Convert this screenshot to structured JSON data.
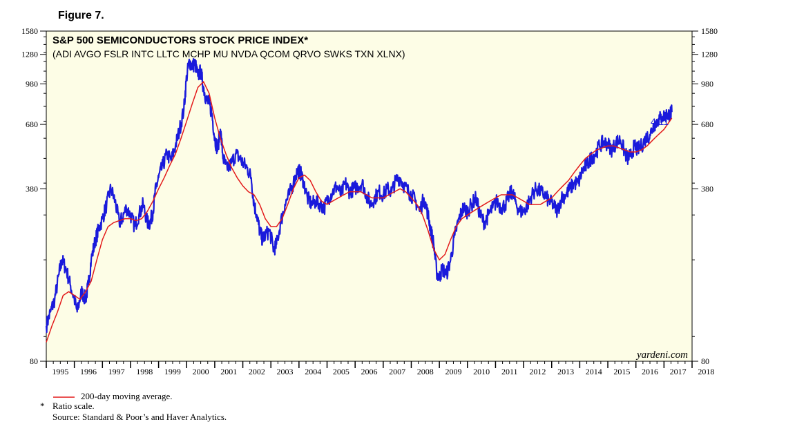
{
  "figure_label": "Figure 7.",
  "watermark": "yardeni.com",
  "footnotes": {
    "legend_label": "200-day moving average.",
    "ratio_marker": "*",
    "ratio_note": "Ratio scale.",
    "source": "Source: Standard & Poor’s and Haver Analytics."
  },
  "colors": {
    "price": "#1a1adb",
    "moving_average": "#e31b1b",
    "plot_bg": "#fdfde6"
  },
  "chart_data": {
    "type": "line",
    "title": "S&P 500 SEMICONDUCTORS STOCK PRICE INDEX*",
    "subtitle": "(ADI AVGO FSLR INTC LLTC MCHP MU NVDA QCOM QRVO SWKS TXN XLNX)",
    "y_scale": "log",
    "ylim": [
      80,
      1580
    ],
    "xlim": [
      1995.0,
      2018.0
    ],
    "y_ticks": [
      80,
      380,
      680,
      980,
      1280,
      1580
    ],
    "x_tick_labels": [
      "1995",
      "1996",
      "1997",
      "1998",
      "1999",
      "2000",
      "2001",
      "2002",
      "2003",
      "2004",
      "2005",
      "2006",
      "2007",
      "2008",
      "2009",
      "2010",
      "2011",
      "2012",
      "2013",
      "2014",
      "2015",
      "2016",
      "2017",
      "2018"
    ],
    "grid": false,
    "end_label": "4/11",
    "series": [
      {
        "name": "S&P 500 Semiconductors Stock Price Index",
        "x": [
          1995.0,
          1995.15,
          1995.3,
          1995.45,
          1995.55,
          1995.7,
          1995.85,
          1996.0,
          1996.1,
          1996.25,
          1996.4,
          1996.5,
          1996.6,
          1996.75,
          1996.85,
          1997.0,
          1997.15,
          1997.3,
          1997.45,
          1997.6,
          1997.7,
          1997.85,
          1998.0,
          1998.15,
          1998.3,
          1998.45,
          1998.6,
          1998.7,
          1998.8,
          1998.9,
          1999.0,
          1999.15,
          1999.3,
          1999.45,
          1999.6,
          1999.75,
          1999.9,
          2000.0,
          2000.1,
          2000.2,
          2000.3,
          2000.4,
          2000.5,
          2000.6,
          2000.7,
          2000.8,
          2000.9,
          2001.0,
          2001.1,
          2001.2,
          2001.3,
          2001.45,
          2001.6,
          2001.75,
          2001.9,
          2002.0,
          2002.15,
          2002.3,
          2002.4,
          2002.5,
          2002.6,
          2002.7,
          2002.8,
          2002.95,
          2003.1,
          2003.2,
          2003.35,
          2003.5,
          2003.65,
          2003.8,
          2003.95,
          2004.05,
          2004.15,
          2004.3,
          2004.45,
          2004.6,
          2004.75,
          2004.9,
          2005.05,
          2005.2,
          2005.35,
          2005.5,
          2005.65,
          2005.8,
          2005.95,
          2006.1,
          2006.25,
          2006.4,
          2006.55,
          2006.7,
          2006.85,
          2007.0,
          2007.15,
          2007.3,
          2007.45,
          2007.6,
          2007.75,
          2007.9,
          2008.0,
          2008.15,
          2008.3,
          2008.45,
          2008.6,
          2008.7,
          2008.8,
          2008.9,
          2009.0,
          2009.1,
          2009.25,
          2009.4,
          2009.55,
          2009.7,
          2009.85,
          2010.0,
          2010.15,
          2010.3,
          2010.45,
          2010.6,
          2010.75,
          2010.9,
          2011.05,
          2011.2,
          2011.35,
          2011.5,
          2011.6,
          2011.7,
          2011.85,
          2012.0,
          2012.15,
          2012.3,
          2012.45,
          2012.6,
          2012.75,
          2012.9,
          2013.05,
          2013.2,
          2013.35,
          2013.5,
          2013.65,
          2013.8,
          2013.95,
          2014.1,
          2014.25,
          2014.4,
          2014.55,
          2014.7,
          2014.85,
          2015.0,
          2015.15,
          2015.3,
          2015.45,
          2015.6,
          2015.7,
          2015.8,
          2015.95,
          2016.05,
          2016.2,
          2016.35,
          2016.5,
          2016.65,
          2016.8,
          2016.95,
          2017.1,
          2017.2,
          2017.28
        ],
        "values": [
          110,
          125,
          140,
          175,
          200,
          185,
          160,
          140,
          125,
          150,
          140,
          160,
          200,
          240,
          260,
          290,
          330,
          380,
          340,
          280,
          290,
          320,
          300,
          270,
          300,
          330,
          280,
          280,
          310,
          380,
          420,
          470,
          520,
          490,
          560,
          650,
          780,
          1050,
          1200,
          1150,
          1180,
          1050,
          1100,
          950,
          850,
          820,
          750,
          600,
          540,
          650,
          500,
          450,
          480,
          520,
          500,
          480,
          460,
          420,
          330,
          300,
          260,
          240,
          250,
          260,
          220,
          230,
          280,
          330,
          360,
          400,
          450,
          440,
          410,
          350,
          330,
          340,
          330,
          320,
          350,
          370,
          390,
          360,
          400,
          370,
          380,
          390,
          400,
          360,
          330,
          350,
          370,
          360,
          380,
          370,
          410,
          420,
          390,
          370,
          360,
          340,
          310,
          350,
          300,
          260,
          230,
          180,
          170,
          185,
          175,
          200,
          250,
          290,
          320,
          310,
          330,
          350,
          300,
          280,
          300,
          320,
          340,
          320,
          330,
          360,
          370,
          340,
          310,
          310,
          330,
          360,
          380,
          370,
          360,
          340,
          330,
          310,
          350,
          360,
          380,
          400,
          400,
          450,
          470,
          500,
          520,
          560,
          580,
          570,
          540,
          580,
          590,
          530,
          500,
          510,
          560,
          540,
          560,
          600,
          620,
          680,
          710,
          730,
          740,
          745,
          760
        ]
      },
      {
        "name": "200-day moving average.",
        "x": [
          1995.0,
          1995.2,
          1995.4,
          1995.6,
          1995.8,
          1996.0,
          1996.2,
          1996.4,
          1996.6,
          1996.8,
          1997.0,
          1997.2,
          1997.4,
          1997.6,
          1997.8,
          1998.0,
          1998.2,
          1998.4,
          1998.6,
          1998.8,
          1999.0,
          1999.2,
          1999.4,
          1999.6,
          1999.8,
          2000.0,
          2000.2,
          2000.4,
          2000.6,
          2000.8,
          2001.0,
          2001.2,
          2001.4,
          2001.6,
          2001.8,
          2002.0,
          2002.2,
          2002.4,
          2002.6,
          2002.8,
          2003.0,
          2003.2,
          2003.4,
          2003.6,
          2003.8,
          2004.0,
          2004.2,
          2004.4,
          2004.6,
          2004.8,
          2005.0,
          2005.2,
          2005.4,
          2005.6,
          2005.8,
          2006.0,
          2006.2,
          2006.4,
          2006.6,
          2006.8,
          2007.0,
          2007.2,
          2007.4,
          2007.6,
          2007.8,
          2008.0,
          2008.2,
          2008.4,
          2008.6,
          2008.8,
          2009.0,
          2009.2,
          2009.4,
          2009.6,
          2009.8,
          2010.0,
          2010.2,
          2010.4,
          2010.6,
          2010.8,
          2011.0,
          2011.2,
          2011.4,
          2011.6,
          2011.8,
          2012.0,
          2012.2,
          2012.4,
          2012.6,
          2012.8,
          2013.0,
          2013.2,
          2013.4,
          2013.6,
          2013.8,
          2014.0,
          2014.2,
          2014.4,
          2014.6,
          2014.8,
          2015.0,
          2015.2,
          2015.4,
          2015.6,
          2015.8,
          2016.0,
          2016.2,
          2016.4,
          2016.6,
          2016.8,
          2017.0,
          2017.28
        ],
        "values": [
          95,
          110,
          125,
          145,
          150,
          145,
          140,
          150,
          165,
          200,
          240,
          270,
          280,
          285,
          290,
          290,
          285,
          290,
          310,
          340,
          380,
          420,
          470,
          520,
          600,
          700,
          820,
          950,
          1000,
          900,
          720,
          600,
          520,
          460,
          420,
          390,
          370,
          360,
          330,
          290,
          270,
          270,
          290,
          330,
          380,
          420,
          430,
          410,
          370,
          340,
          330,
          340,
          350,
          360,
          370,
          370,
          370,
          360,
          350,
          350,
          350,
          360,
          370,
          380,
          370,
          350,
          330,
          300,
          260,
          220,
          200,
          210,
          240,
          270,
          290,
          300,
          310,
          320,
          330,
          340,
          350,
          360,
          360,
          360,
          350,
          340,
          330,
          330,
          330,
          340,
          350,
          370,
          390,
          410,
          440,
          470,
          500,
          520,
          540,
          550,
          560,
          560,
          550,
          540,
          530,
          530,
          540,
          560,
          590,
          620,
          650,
          720
        ]
      }
    ]
  }
}
